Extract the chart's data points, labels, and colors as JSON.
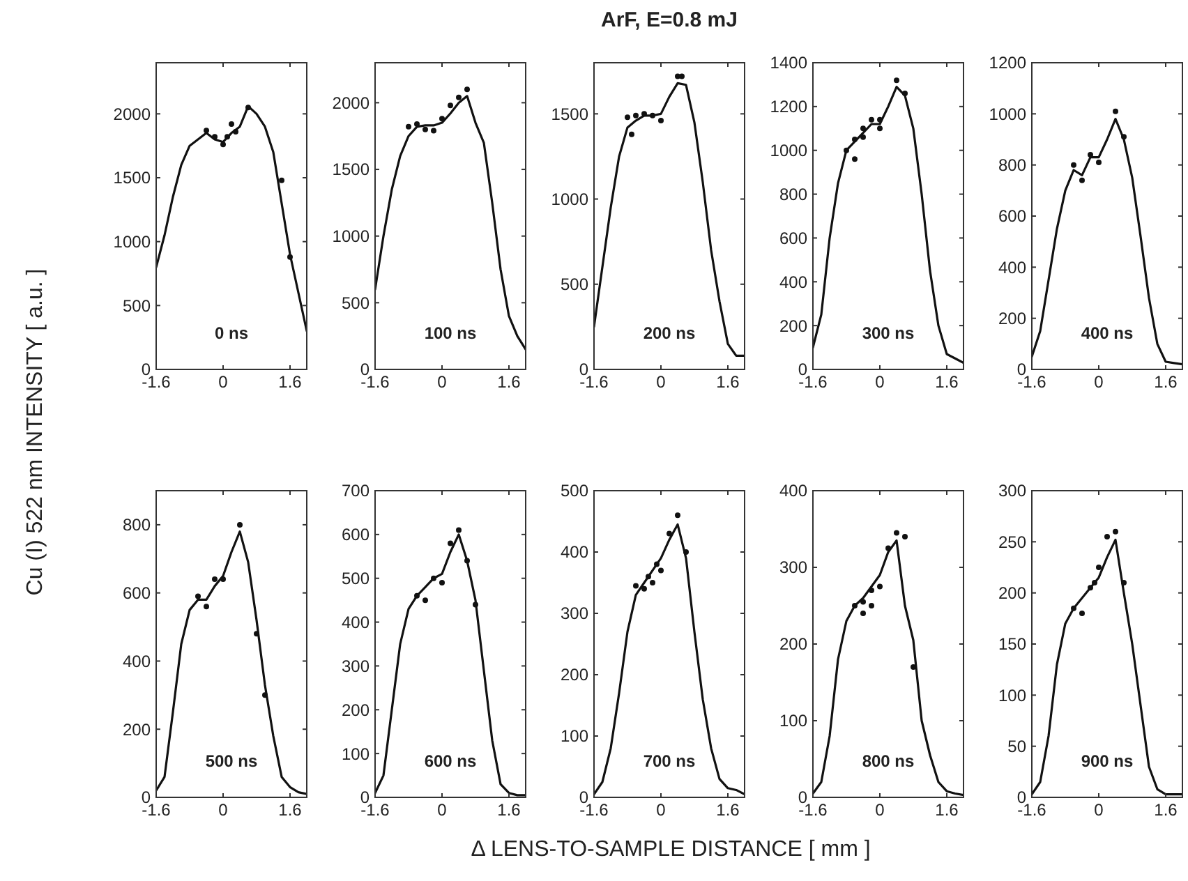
{
  "chart_data": [
    {
      "type": "line",
      "ylabel": "Cu (I) 522 nm INTENSITY [ a.u. ]",
      "annotations": [
        "0 ns"
      ],
      "xlim": [
        -1.6,
        2.0
      ],
      "xticks": [
        -1.6,
        0,
        1.6
      ],
      "ylim": [
        0,
        2400
      ],
      "yticks": [
        0,
        500,
        1000,
        1500,
        2000
      ],
      "grid": false,
      "series": [
        {
          "type": "line",
          "color": "#111111",
          "x": [
            -1.6,
            -1.4,
            -1.2,
            -1.0,
            -0.8,
            -0.6,
            -0.4,
            -0.2,
            0,
            0.2,
            0.4,
            0.6,
            0.8,
            1.0,
            1.2,
            1.4,
            1.6,
            1.8,
            2.0
          ],
          "values": [
            800,
            1050,
            1350,
            1600,
            1750,
            1800,
            1850,
            1800,
            1780,
            1850,
            1900,
            2060,
            2000,
            1900,
            1700,
            1300,
            900,
            600,
            300
          ]
        },
        {
          "type": "scatter",
          "marker": "circle",
          "color": "#111111",
          "x": [
            -0.4,
            -0.2,
            0,
            0.1,
            0.2,
            0.3,
            0.6,
            1.4,
            1.6
          ],
          "values": [
            1870,
            1820,
            1760,
            1820,
            1920,
            1860,
            2050,
            1480,
            880
          ]
        }
      ]
    },
    {
      "type": "line",
      "annotations": [
        "100 ns"
      ],
      "xlim": [
        -1.6,
        2.0
      ],
      "xticks": [
        -1.6,
        0,
        1.6
      ],
      "ylim": [
        0,
        2300
      ],
      "yticks": [
        0,
        500,
        1000,
        1500,
        2000
      ],
      "grid": false,
      "series": [
        {
          "type": "line",
          "color": "#111111",
          "x": [
            -1.6,
            -1.4,
            -1.2,
            -1.0,
            -0.8,
            -0.6,
            -0.4,
            -0.2,
            0,
            0.2,
            0.4,
            0.6,
            0.8,
            1.0,
            1.2,
            1.4,
            1.6,
            1.8,
            2.0
          ],
          "values": [
            600,
            1000,
            1350,
            1600,
            1750,
            1820,
            1830,
            1830,
            1850,
            1920,
            2000,
            2050,
            1850,
            1700,
            1250,
            750,
            400,
            250,
            150
          ]
        },
        {
          "type": "scatter",
          "marker": "circle",
          "color": "#111111",
          "x": [
            -0.8,
            -0.6,
            -0.4,
            -0.2,
            0,
            0.2,
            0.4,
            0.6
          ],
          "values": [
            1820,
            1840,
            1800,
            1790,
            1880,
            1980,
            2040,
            2100
          ]
        }
      ]
    },
    {
      "type": "line",
      "title": "ArF, E=0.8 mJ",
      "annotations": [
        "200 ns"
      ],
      "xlim": [
        -1.6,
        2.0
      ],
      "xticks": [
        -1.6,
        0,
        1.6
      ],
      "ylim": [
        0,
        1800
      ],
      "yticks": [
        0,
        500,
        1000,
        1500
      ],
      "grid": false,
      "series": [
        {
          "type": "line",
          "color": "#111111",
          "x": [
            -1.6,
            -1.4,
            -1.2,
            -1.0,
            -0.8,
            -0.6,
            -0.4,
            -0.2,
            0,
            0.2,
            0.4,
            0.6,
            0.8,
            1.0,
            1.2,
            1.4,
            1.6,
            1.8,
            2.0
          ],
          "values": [
            250,
            600,
            950,
            1250,
            1420,
            1460,
            1490,
            1490,
            1500,
            1600,
            1680,
            1670,
            1450,
            1100,
            700,
            400,
            150,
            80,
            80
          ]
        },
        {
          "type": "scatter",
          "marker": "circle",
          "color": "#111111",
          "x": [
            -0.8,
            -0.7,
            -0.6,
            -0.4,
            -0.2,
            0,
            0.4,
            0.5
          ],
          "values": [
            1480,
            1380,
            1490,
            1500,
            1490,
            1460,
            1720,
            1720
          ]
        }
      ]
    },
    {
      "type": "line",
      "annotations": [
        "300 ns"
      ],
      "xlim": [
        -1.6,
        2.0
      ],
      "xticks": [
        -1.6,
        0,
        1.6
      ],
      "ylim": [
        0,
        1400
      ],
      "yticks": [
        0,
        200,
        400,
        600,
        800,
        1000,
        1200,
        1400
      ],
      "grid": false,
      "series": [
        {
          "type": "line",
          "color": "#111111",
          "x": [
            -1.6,
            -1.4,
            -1.2,
            -1.0,
            -0.8,
            -0.6,
            -0.4,
            -0.2,
            0,
            0.2,
            0.4,
            0.6,
            0.8,
            1.0,
            1.2,
            1.4,
            1.6,
            1.8,
            2.0
          ],
          "values": [
            100,
            250,
            600,
            850,
            1000,
            1040,
            1080,
            1120,
            1120,
            1200,
            1290,
            1250,
            1100,
            800,
            450,
            200,
            70,
            50,
            30
          ]
        },
        {
          "type": "scatter",
          "marker": "circle",
          "color": "#111111",
          "x": [
            -0.8,
            -0.6,
            -0.6,
            -0.4,
            -0.4,
            -0.2,
            0,
            0,
            0.4,
            0.6
          ],
          "values": [
            1000,
            960,
            1050,
            1060,
            1100,
            1140,
            1100,
            1140,
            1320,
            1260
          ]
        }
      ]
    },
    {
      "type": "line",
      "annotations": [
        "400 ns"
      ],
      "xlim": [
        -1.6,
        2.0
      ],
      "xticks": [
        -1.6,
        0,
        1.6
      ],
      "ylim": [
        0,
        1200
      ],
      "yticks": [
        0,
        200,
        400,
        600,
        800,
        1000,
        1200
      ],
      "grid": false,
      "series": [
        {
          "type": "line",
          "color": "#111111",
          "x": [
            -1.6,
            -1.4,
            -1.2,
            -1.0,
            -0.8,
            -0.6,
            -0.4,
            -0.2,
            0,
            0.2,
            0.4,
            0.6,
            0.8,
            1.0,
            1.2,
            1.4,
            1.6,
            1.8,
            2.0
          ],
          "values": [
            50,
            150,
            350,
            550,
            700,
            780,
            760,
            830,
            830,
            900,
            980,
            900,
            750,
            520,
            280,
            100,
            30,
            25,
            20
          ]
        },
        {
          "type": "scatter",
          "marker": "circle",
          "color": "#111111",
          "x": [
            -0.6,
            -0.4,
            -0.2,
            0,
            0.4,
            0.6
          ],
          "values": [
            800,
            740,
            840,
            810,
            1010,
            910
          ]
        }
      ]
    },
    {
      "type": "line",
      "annotations": [
        "500 ns"
      ],
      "xlim": [
        -1.6,
        2.0
      ],
      "xticks": [
        -1.6,
        0,
        1.6
      ],
      "ylim": [
        0,
        900
      ],
      "yticks": [
        0,
        200,
        400,
        600,
        800
      ],
      "grid": false,
      "series": [
        {
          "type": "line",
          "color": "#111111",
          "x": [
            -1.6,
            -1.4,
            -1.2,
            -1.0,
            -0.8,
            -0.6,
            -0.4,
            -0.2,
            0,
            0.2,
            0.4,
            0.6,
            0.8,
            1.0,
            1.2,
            1.4,
            1.6,
            1.8,
            2.0
          ],
          "values": [
            20,
            60,
            250,
            450,
            550,
            580,
            580,
            620,
            650,
            720,
            780,
            690,
            520,
            330,
            180,
            60,
            30,
            15,
            10
          ]
        },
        {
          "type": "scatter",
          "marker": "circle",
          "color": "#111111",
          "x": [
            -0.6,
            -0.4,
            -0.2,
            0,
            0.4,
            0.8,
            1.0
          ],
          "values": [
            590,
            560,
            640,
            640,
            800,
            480,
            300
          ]
        }
      ]
    },
    {
      "type": "line",
      "annotations": [
        "600 ns"
      ],
      "xlim": [
        -1.6,
        2.0
      ],
      "xticks": [
        -1.6,
        0,
        1.6
      ],
      "ylim": [
        0,
        700
      ],
      "yticks": [
        0,
        100,
        200,
        300,
        400,
        500,
        600,
        700
      ],
      "grid": false,
      "series": [
        {
          "type": "line",
          "color": "#111111",
          "x": [
            -1.6,
            -1.4,
            -1.2,
            -1.0,
            -0.8,
            -0.6,
            -0.4,
            -0.2,
            0,
            0.2,
            0.4,
            0.6,
            0.8,
            1.0,
            1.2,
            1.4,
            1.6,
            1.8,
            2.0
          ],
          "values": [
            10,
            50,
            200,
            350,
            430,
            460,
            480,
            500,
            510,
            560,
            600,
            540,
            450,
            290,
            130,
            30,
            10,
            5,
            5
          ]
        },
        {
          "type": "scatter",
          "marker": "circle",
          "color": "#111111",
          "x": [
            -0.6,
            -0.4,
            -0.2,
            0,
            0.2,
            0.4,
            0.6,
            0.8
          ],
          "values": [
            460,
            450,
            500,
            490,
            580,
            610,
            540,
            440
          ]
        }
      ]
    },
    {
      "type": "line",
      "xlabel": "Δ LENS-TO-SAMPLE DISTANCE [ mm ]",
      "annotations": [
        "700 ns"
      ],
      "xlim": [
        -1.6,
        2.0
      ],
      "xticks": [
        -1.6,
        0,
        1.6
      ],
      "ylim": [
        0,
        500
      ],
      "yticks": [
        0,
        100,
        200,
        300,
        400,
        500
      ],
      "grid": false,
      "series": [
        {
          "type": "line",
          "color": "#111111",
          "x": [
            -1.6,
            -1.4,
            -1.2,
            -1.0,
            -0.8,
            -0.6,
            -0.4,
            -0.2,
            0,
            0.2,
            0.4,
            0.6,
            0.8,
            1.0,
            1.2,
            1.4,
            1.6,
            1.8,
            2.0
          ],
          "values": [
            5,
            25,
            80,
            170,
            270,
            330,
            350,
            370,
            390,
            420,
            445,
            390,
            270,
            160,
            80,
            30,
            15,
            12,
            5
          ]
        },
        {
          "type": "scatter",
          "marker": "circle",
          "color": "#111111",
          "x": [
            -0.6,
            -0.4,
            -0.3,
            -0.2,
            -0.1,
            0,
            0.2,
            0.4,
            0.6
          ],
          "values": [
            345,
            340,
            360,
            350,
            380,
            370,
            430,
            460,
            400
          ]
        }
      ]
    },
    {
      "type": "line",
      "annotations": [
        "800 ns"
      ],
      "xlim": [
        -1.6,
        2.0
      ],
      "xticks": [
        -1.6,
        0,
        1.6
      ],
      "ylim": [
        0,
        400
      ],
      "yticks": [
        0,
        100,
        200,
        300,
        400
      ],
      "grid": false,
      "series": [
        {
          "type": "line",
          "color": "#111111",
          "x": [
            -1.6,
            -1.4,
            -1.2,
            -1.0,
            -0.8,
            -0.6,
            -0.4,
            -0.2,
            0,
            0.2,
            0.4,
            0.6,
            0.8,
            1.0,
            1.2,
            1.4,
            1.6,
            1.8,
            2.0
          ],
          "values": [
            5,
            20,
            80,
            180,
            230,
            250,
            260,
            275,
            290,
            320,
            335,
            250,
            205,
            100,
            55,
            20,
            8,
            5,
            3
          ]
        },
        {
          "type": "scatter",
          "marker": "circle",
          "color": "#111111",
          "x": [
            -0.6,
            -0.4,
            -0.4,
            -0.2,
            -0.2,
            0,
            0.2,
            0.4,
            0.6,
            0.8
          ],
          "values": [
            250,
            240,
            255,
            250,
            270,
            275,
            325,
            345,
            340,
            170
          ]
        }
      ]
    },
    {
      "type": "line",
      "annotations": [
        "900 ns"
      ],
      "xlim": [
        -1.6,
        2.0
      ],
      "xticks": [
        -1.6,
        0,
        1.6
      ],
      "ylim": [
        0,
        300
      ],
      "yticks": [
        0,
        50,
        100,
        150,
        200,
        250,
        300
      ],
      "grid": false,
      "series": [
        {
          "type": "line",
          "color": "#111111",
          "x": [
            -1.6,
            -1.4,
            -1.2,
            -1.0,
            -0.8,
            -0.6,
            -0.4,
            -0.2,
            0,
            0.2,
            0.4,
            0.6,
            0.8,
            1.0,
            1.2,
            1.4,
            1.6,
            1.8,
            2.0
          ],
          "values": [
            3,
            15,
            60,
            130,
            170,
            185,
            195,
            205,
            215,
            235,
            252,
            200,
            150,
            90,
            30,
            8,
            3,
            3,
            3
          ]
        },
        {
          "type": "scatter",
          "marker": "circle",
          "color": "#111111",
          "x": [
            -0.6,
            -0.4,
            -0.2,
            -0.1,
            0,
            0.2,
            0.4,
            0.6
          ],
          "values": [
            185,
            180,
            205,
            210,
            225,
            255,
            260,
            210
          ]
        }
      ]
    }
  ]
}
